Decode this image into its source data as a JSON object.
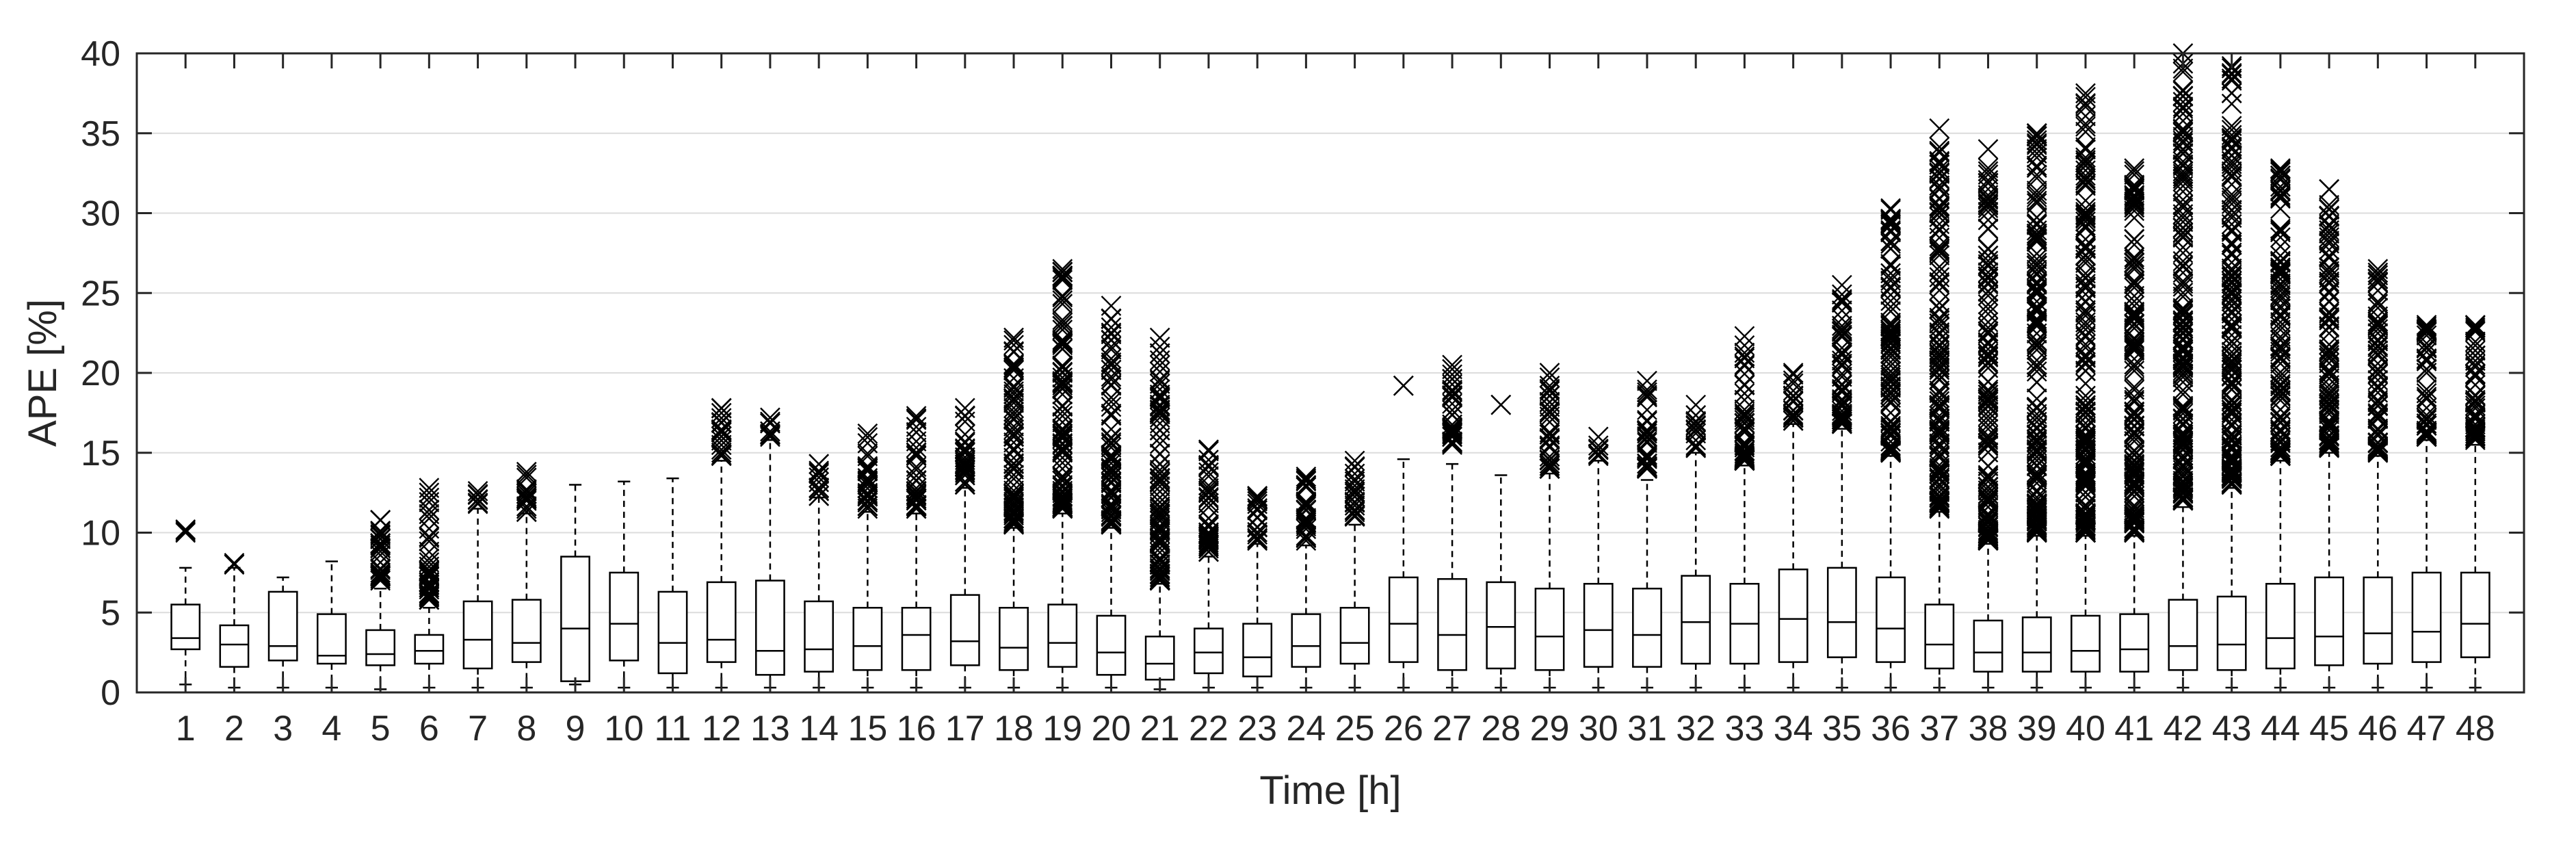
{
  "chart_data": {
    "type": "boxplot",
    "xlabel": "Time [h]",
    "ylabel": "APE [%]",
    "ylim": [
      0,
      40
    ],
    "yticks": [
      0,
      5,
      10,
      15,
      20,
      25,
      30,
      35,
      40
    ],
    "grid": "horizontal",
    "colors": {
      "box": "#000000",
      "grid": "#dcdcdc",
      "text": "#262626"
    },
    "categories": [
      "1",
      "2",
      "3",
      "4",
      "5",
      "6",
      "7",
      "8",
      "9",
      "10",
      "11",
      "12",
      "13",
      "14",
      "15",
      "16",
      "17",
      "18",
      "19",
      "20",
      "21",
      "22",
      "23",
      "24",
      "25",
      "26",
      "27",
      "28",
      "29",
      "30",
      "31",
      "32",
      "33",
      "34",
      "35",
      "36",
      "37",
      "38",
      "39",
      "40",
      "41",
      "42",
      "43",
      "44",
      "45",
      "46",
      "47",
      "48"
    ],
    "boxes": [
      {
        "x": "1",
        "low": 0.5,
        "q1": 2.7,
        "median": 3.4,
        "q3": 5.5,
        "high": 7.8,
        "outliers_min": 10,
        "outliers_max": 10.2
      },
      {
        "x": "2",
        "low": 0.3,
        "q1": 1.6,
        "median": 3.0,
        "q3": 4.2,
        "high": 7.8,
        "outliers_min": 8,
        "outliers_max": 8.1
      },
      {
        "x": "3",
        "low": 0.3,
        "q1": 2.0,
        "median": 2.9,
        "q3": 6.3,
        "high": 7.2,
        "outliers_min": null,
        "outliers_max": null
      },
      {
        "x": "4",
        "low": 0.3,
        "q1": 1.8,
        "median": 2.3,
        "q3": 4.9,
        "high": 8.2,
        "outliers_min": null,
        "outliers_max": null
      },
      {
        "x": "5",
        "low": 0.2,
        "q1": 1.7,
        "median": 2.4,
        "q3": 3.9,
        "high": 6.5,
        "outliers_min": 7,
        "outliers_max": 10.8
      },
      {
        "x": "6",
        "low": 0.3,
        "q1": 1.8,
        "median": 2.6,
        "q3": 3.6,
        "high": 5.3,
        "outliers_min": 5.8,
        "outliers_max": 12.8
      },
      {
        "x": "7",
        "low": 0.3,
        "q1": 1.5,
        "median": 3.3,
        "q3": 5.7,
        "high": 11.5,
        "outliers_min": 11.8,
        "outliers_max": 12.6
      },
      {
        "x": "8",
        "low": 0.3,
        "q1": 1.9,
        "median": 3.1,
        "q3": 5.8,
        "high": 11.2,
        "outliers_min": 11.3,
        "outliers_max": 13.8
      },
      {
        "x": "9",
        "low": 0.5,
        "q1": 0.7,
        "median": 4.0,
        "q3": 8.5,
        "high": 13.0,
        "outliers_min": null,
        "outliers_max": null
      },
      {
        "x": "10",
        "low": 0.3,
        "q1": 2.0,
        "median": 4.3,
        "q3": 7.5,
        "high": 13.2,
        "outliers_min": null,
        "outliers_max": null
      },
      {
        "x": "11",
        "low": 0.3,
        "q1": 1.2,
        "median": 3.1,
        "q3": 6.3,
        "high": 13.4,
        "outliers_min": null,
        "outliers_max": null
      },
      {
        "x": "12",
        "low": 0.3,
        "q1": 1.9,
        "median": 3.3,
        "q3": 6.9,
        "high": 14.5,
        "outliers_min": 14.8,
        "outliers_max": 17.8
      },
      {
        "x": "13",
        "low": 0.3,
        "q1": 1.1,
        "median": 2.6,
        "q3": 7.0,
        "high": 15.8,
        "outliers_min": 16.0,
        "outliers_max": 17.2
      },
      {
        "x": "14",
        "low": 0.3,
        "q1": 1.3,
        "median": 2.7,
        "q3": 5.7,
        "high": 12.2,
        "outliers_min": 12.3,
        "outliers_max": 14.3
      },
      {
        "x": "15",
        "low": 0.3,
        "q1": 1.4,
        "median": 2.9,
        "q3": 5.3,
        "high": 11.3,
        "outliers_min": 11.5,
        "outliers_max": 16.2
      },
      {
        "x": "16",
        "low": 0.3,
        "q1": 1.4,
        "median": 3.6,
        "q3": 5.3,
        "high": 11.2,
        "outliers_min": 11.5,
        "outliers_max": 17.3
      },
      {
        "x": "17",
        "low": 0.3,
        "q1": 1.7,
        "median": 3.2,
        "q3": 6.1,
        "high": 12.8,
        "outliers_min": 13.0,
        "outliers_max": 17.8
      },
      {
        "x": "18",
        "low": 0.3,
        "q1": 1.4,
        "median": 2.8,
        "q3": 5.3,
        "high": 10.3,
        "outliers_min": 10.5,
        "outliers_max": 22.2
      },
      {
        "x": "19",
        "low": 0.3,
        "q1": 1.6,
        "median": 3.1,
        "q3": 5.5,
        "high": 11.2,
        "outliers_min": 11.5,
        "outliers_max": 26.5
      },
      {
        "x": "20",
        "low": 0.3,
        "q1": 1.1,
        "median": 2.5,
        "q3": 4.8,
        "high": 10.3,
        "outliers_min": 10.5,
        "outliers_max": 24.2
      },
      {
        "x": "21",
        "low": 0.2,
        "q1": 0.8,
        "median": 1.8,
        "q3": 3.5,
        "high": 6.8,
        "outliers_min": 7.0,
        "outliers_max": 22.2
      },
      {
        "x": "22",
        "low": 0.3,
        "q1": 1.2,
        "median": 2.5,
        "q3": 4.0,
        "high": 8.5,
        "outliers_min": 8.8,
        "outliers_max": 15.2
      },
      {
        "x": "23",
        "low": 0.3,
        "q1": 1.0,
        "median": 2.2,
        "q3": 4.3,
        "high": 9.3,
        "outliers_min": 9.5,
        "outliers_max": 12.3
      },
      {
        "x": "24",
        "low": 0.3,
        "q1": 1.6,
        "median": 2.9,
        "q3": 4.9,
        "high": 9.2,
        "outliers_min": 9.5,
        "outliers_max": 13.5
      },
      {
        "x": "25",
        "low": 0.3,
        "q1": 1.8,
        "median": 3.1,
        "q3": 5.3,
        "high": 10.5,
        "outliers_min": 11.0,
        "outliers_max": 14.5
      },
      {
        "x": "26",
        "low": 0.3,
        "q1": 1.9,
        "median": 4.3,
        "q3": 7.2,
        "high": 14.6,
        "outliers_min": 19.2,
        "outliers_max": 19.2
      },
      {
        "x": "27",
        "low": 0.3,
        "q1": 1.4,
        "median": 3.6,
        "q3": 7.1,
        "high": 14.3,
        "outliers_min": 15.5,
        "outliers_max": 20.5
      },
      {
        "x": "28",
        "low": 0.3,
        "q1": 1.5,
        "median": 4.1,
        "q3": 6.9,
        "high": 13.6,
        "outliers_min": 18.0,
        "outliers_max": 18.0
      },
      {
        "x": "29",
        "low": 0.3,
        "q1": 1.4,
        "median": 3.5,
        "q3": 6.5,
        "high": 13.7,
        "outliers_min": 14.0,
        "outliers_max": 20.0
      },
      {
        "x": "30",
        "low": 0.3,
        "q1": 1.6,
        "median": 3.9,
        "q3": 6.8,
        "high": 14.5,
        "outliers_min": 14.8,
        "outliers_max": 16.0
      },
      {
        "x": "31",
        "low": 0.3,
        "q1": 1.6,
        "median": 3.6,
        "q3": 6.5,
        "high": 13.3,
        "outliers_min": 14.0,
        "outliers_max": 19.5
      },
      {
        "x": "32",
        "low": 0.3,
        "q1": 1.8,
        "median": 4.4,
        "q3": 7.3,
        "high": 15.0,
        "outliers_min": 15.3,
        "outliers_max": 18.0
      },
      {
        "x": "33",
        "low": 0.3,
        "q1": 1.8,
        "median": 4.3,
        "q3": 6.8,
        "high": 14.2,
        "outliers_min": 14.5,
        "outliers_max": 22.3
      },
      {
        "x": "34",
        "low": 0.3,
        "q1": 1.9,
        "median": 4.6,
        "q3": 7.7,
        "high": 16.8,
        "outliers_min": 17.0,
        "outliers_max": 20.0
      },
      {
        "x": "35",
        "low": 0.3,
        "q1": 2.2,
        "median": 4.4,
        "q3": 7.8,
        "high": 16.5,
        "outliers_min": 16.8,
        "outliers_max": 25.5
      },
      {
        "x": "36",
        "low": 0.3,
        "q1": 1.9,
        "median": 4.0,
        "q3": 7.2,
        "high": 14.8,
        "outliers_min": 15.0,
        "outliers_max": 30.3
      },
      {
        "x": "37",
        "low": 0.3,
        "q1": 1.5,
        "median": 3.0,
        "q3": 5.5,
        "high": 11.3,
        "outliers_min": 11.5,
        "outliers_max": 35.3
      },
      {
        "x": "38",
        "low": 0.3,
        "q1": 1.3,
        "median": 2.5,
        "q3": 4.5,
        "high": 9.3,
        "outliers_min": 9.5,
        "outliers_max": 34.0
      },
      {
        "x": "39",
        "low": 0.3,
        "q1": 1.3,
        "median": 2.5,
        "q3": 4.7,
        "high": 9.8,
        "outliers_min": 10.0,
        "outliers_max": 35.0
      },
      {
        "x": "40",
        "low": 0.3,
        "q1": 1.3,
        "median": 2.6,
        "q3": 4.8,
        "high": 9.8,
        "outliers_min": 10.0,
        "outliers_max": 37.5
      },
      {
        "x": "41",
        "low": 0.3,
        "q1": 1.3,
        "median": 2.7,
        "q3": 4.9,
        "high": 9.8,
        "outliers_min": 10.0,
        "outliers_max": 32.8
      },
      {
        "x": "42",
        "low": 0.3,
        "q1": 1.4,
        "median": 2.9,
        "q3": 5.8,
        "high": 11.6,
        "outliers_min": 12.0,
        "outliers_max": 40.0
      },
      {
        "x": "43",
        "low": 0.3,
        "q1": 1.4,
        "median": 3.0,
        "q3": 6.0,
        "high": 12.8,
        "outliers_min": 13.0,
        "outliers_max": 39.2
      },
      {
        "x": "44",
        "low": 0.3,
        "q1": 1.5,
        "median": 3.4,
        "q3": 6.8,
        "high": 14.5,
        "outliers_min": 14.8,
        "outliers_max": 32.8
      },
      {
        "x": "45",
        "low": 0.3,
        "q1": 1.7,
        "median": 3.5,
        "q3": 7.2,
        "high": 15.0,
        "outliers_min": 15.3,
        "outliers_max": 31.5
      },
      {
        "x": "46",
        "low": 0.3,
        "q1": 1.8,
        "median": 3.7,
        "q3": 7.2,
        "high": 14.8,
        "outliers_min": 15.0,
        "outliers_max": 26.5
      },
      {
        "x": "47",
        "low": 0.3,
        "q1": 1.9,
        "median": 3.8,
        "q3": 7.5,
        "high": 15.8,
        "outliers_min": 16.0,
        "outliers_max": 23.0
      },
      {
        "x": "48",
        "low": 0.3,
        "q1": 2.2,
        "median": 4.3,
        "q3": 7.5,
        "high": 15.5,
        "outliers_min": 15.8,
        "outliers_max": 23.0
      }
    ]
  }
}
